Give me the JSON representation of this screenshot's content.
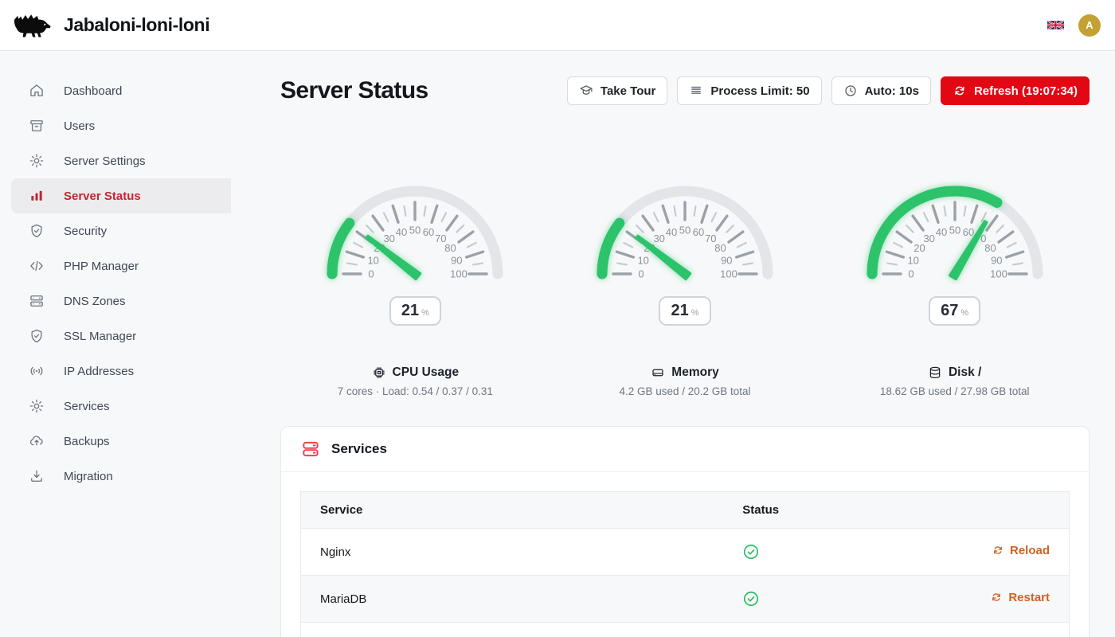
{
  "app": {
    "title": "Jabaloni-loni-loni"
  },
  "header": {
    "language": "en-GB",
    "language_flag": "uk-flag",
    "avatar_initial": "A"
  },
  "sidebar": {
    "items": [
      {
        "label": "Dashboard",
        "icon": "home-icon",
        "active": false
      },
      {
        "label": "Users",
        "icon": "archive-icon",
        "active": false
      },
      {
        "label": "Server Settings",
        "icon": "gear-icon",
        "active": false
      },
      {
        "label": "Server Status",
        "icon": "bar-chart-icon",
        "active": true
      },
      {
        "label": "Security",
        "icon": "shield-check-icon",
        "active": false
      },
      {
        "label": "PHP Manager",
        "icon": "code-icon",
        "active": false
      },
      {
        "label": "DNS Zones",
        "icon": "server-stack-icon",
        "active": false
      },
      {
        "label": "SSL Manager",
        "icon": "shield-check-icon",
        "active": false
      },
      {
        "label": "IP Addresses",
        "icon": "broadcast-icon",
        "active": false
      },
      {
        "label": "Services",
        "icon": "gear-icon",
        "active": false
      },
      {
        "label": "Backups",
        "icon": "cloud-upload-icon",
        "active": false
      },
      {
        "label": "Migration",
        "icon": "download-icon",
        "active": false
      }
    ]
  },
  "page": {
    "title": "Server Status",
    "toolbar": {
      "take_tour": "Take Tour",
      "process_limit": "Process Limit: 50",
      "auto_refresh": "Auto: 10s",
      "refresh": "Refresh (19:07:34)"
    }
  },
  "chart_data": [
    {
      "type": "gauge",
      "title": "CPU Usage",
      "value": 21,
      "unit": "%",
      "min": 0,
      "max": 100,
      "tick_labels": [
        0,
        10,
        20,
        30,
        40,
        50,
        60,
        70,
        80,
        90,
        100
      ]
    },
    {
      "type": "gauge",
      "title": "Memory",
      "value": 21,
      "unit": "%",
      "min": 0,
      "max": 100,
      "tick_labels": [
        0,
        10,
        20,
        30,
        40,
        50,
        60,
        70,
        80,
        90,
        100
      ]
    },
    {
      "type": "gauge",
      "title": "Disk /",
      "value": 67,
      "unit": "%",
      "min": 0,
      "max": 100,
      "tick_labels": [
        0,
        10,
        20,
        30,
        40,
        50,
        60,
        70,
        80,
        90,
        100
      ]
    }
  ],
  "gauges": [
    {
      "value": 21,
      "unit": "%",
      "title": "CPU Usage",
      "subtitle": "7 cores · Load: 0.54 / 0.37 / 0.31",
      "icon": "cpu-icon"
    },
    {
      "value": 21,
      "unit": "%",
      "title": "Memory",
      "subtitle": "4.2 GB used / 20.2 GB total",
      "icon": "memory-icon"
    },
    {
      "value": 67,
      "unit": "%",
      "title": "Disk /",
      "subtitle": "18.62 GB used / 27.98 GB total",
      "icon": "disk-icon"
    }
  ],
  "services": {
    "title": "Services",
    "icon": "server-rack-icon",
    "columns": {
      "service": "Service",
      "status": "Status"
    },
    "rows": [
      {
        "name": "Nginx",
        "status": "ok",
        "action": "Reload"
      },
      {
        "name": "MariaDB",
        "status": "ok",
        "action": "Restart"
      }
    ]
  },
  "colors": {
    "accent_red": "#e30613",
    "sidebar_active_red": "#c02731",
    "gauge_green": "#2cc36b",
    "status_green": "#27bd5f",
    "action_orange": "#d06224",
    "avatar_gold": "#c3a233",
    "page_background": "#f7f8f9"
  }
}
